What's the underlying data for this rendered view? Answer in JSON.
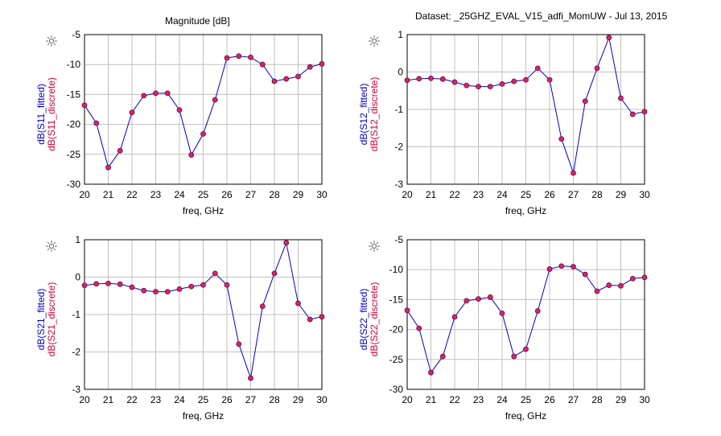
{
  "header": {
    "title": "Magnitude [dB]",
    "dataset": "Dataset: _25GHZ_EVAL_V15_adfi_MomUW - Jul 13, 2015"
  },
  "colors": {
    "fitted": "#0000cc",
    "discrete": "#cc0033",
    "marker_fill": "#e0206a",
    "grid": "#c0c0c0"
  },
  "icons": {
    "plot_marker": "sun-icon"
  },
  "chart_data": [
    {
      "type": "line",
      "id": "s11",
      "ylabel_fitted": "dB(S11_fitted)",
      "ylabel_discrete": "dB(S11_discrete)",
      "xlabel": "freq, GHz",
      "xlim": [
        20,
        30
      ],
      "ylim": [
        -30,
        -5
      ],
      "xticks": [
        20,
        21,
        22,
        23,
        24,
        25,
        26,
        27,
        28,
        29,
        30
      ],
      "yticks": [
        -30,
        -25,
        -20,
        -15,
        -10,
        -5
      ],
      "grid": true,
      "x": [
        20,
        20.5,
        21,
        21.5,
        22,
        22.5,
        23,
        23.5,
        24,
        24.5,
        25,
        25.5,
        26,
        26.5,
        27,
        27.5,
        28,
        28.5,
        29,
        29.5,
        30
      ],
      "series": [
        {
          "name": "dB(S11_fitted)",
          "values": [
            -16.8,
            -19.8,
            -27.2,
            -24.4,
            -18.0,
            -15.2,
            -14.8,
            -14.8,
            -17.6,
            -25.1,
            -21.6,
            -15.9,
            -8.9,
            -8.6,
            -8.8,
            -10.0,
            -12.8,
            -12.4,
            -12.0,
            -10.4,
            -9.9
          ]
        },
        {
          "name": "dB(S11_discrete)",
          "values": [
            -16.8,
            -19.8,
            -27.2,
            -24.4,
            -18.0,
            -15.2,
            -14.8,
            -14.8,
            -17.6,
            -25.1,
            -21.6,
            -15.9,
            -8.9,
            -8.6,
            -8.8,
            -10.0,
            -12.8,
            -12.4,
            -12.0,
            -10.4,
            -9.9
          ]
        }
      ]
    },
    {
      "type": "line",
      "id": "s12",
      "ylabel_fitted": "dB(S12_fitted)",
      "ylabel_discrete": "dB(S12_discrete)",
      "xlabel": "freq, GHz",
      "xlim": [
        20,
        30
      ],
      "ylim": [
        -3,
        1
      ],
      "xticks": [
        20,
        21,
        22,
        23,
        24,
        25,
        26,
        27,
        28,
        29,
        30
      ],
      "yticks": [
        -3,
        -2,
        -1,
        0,
        1
      ],
      "grid": true,
      "x": [
        20,
        20.5,
        21,
        21.5,
        22,
        22.5,
        23,
        23.5,
        24,
        24.5,
        25,
        25.5,
        26,
        26.5,
        27,
        27.5,
        28,
        28.5,
        29,
        29.5,
        30
      ],
      "series": [
        {
          "name": "dB(S12_fitted)",
          "values": [
            -0.22,
            -0.18,
            -0.17,
            -0.19,
            -0.27,
            -0.36,
            -0.39,
            -0.39,
            -0.32,
            -0.25,
            -0.21,
            0.1,
            -0.21,
            -1.79,
            -2.7,
            -0.78,
            0.1,
            0.92,
            -0.7,
            -1.13,
            -1.06
          ]
        },
        {
          "name": "dB(S12_discrete)",
          "values": [
            -0.22,
            -0.18,
            -0.17,
            -0.19,
            -0.27,
            -0.36,
            -0.39,
            -0.39,
            -0.32,
            -0.25,
            -0.21,
            0.1,
            -0.21,
            -1.79,
            -2.7,
            -0.78,
            0.1,
            0.92,
            -0.7,
            -1.13,
            -1.06
          ]
        }
      ]
    },
    {
      "type": "line",
      "id": "s21",
      "ylabel_fitted": "dB(S21_fitted)",
      "ylabel_discrete": "dB(S21_discrete)",
      "xlabel": "freq, GHz",
      "xlim": [
        20,
        30
      ],
      "ylim": [
        -3,
        1
      ],
      "xticks": [
        20,
        21,
        22,
        23,
        24,
        25,
        26,
        27,
        28,
        29,
        30
      ],
      "yticks": [
        -3,
        -2,
        -1,
        0,
        1
      ],
      "grid": true,
      "x": [
        20,
        20.5,
        21,
        21.5,
        22,
        22.5,
        23,
        23.5,
        24,
        24.5,
        25,
        25.5,
        26,
        26.5,
        27,
        27.5,
        28,
        28.5,
        29,
        29.5,
        30
      ],
      "series": [
        {
          "name": "dB(S21_fitted)",
          "values": [
            -0.22,
            -0.18,
            -0.17,
            -0.19,
            -0.27,
            -0.36,
            -0.39,
            -0.39,
            -0.32,
            -0.25,
            -0.21,
            0.1,
            -0.21,
            -1.79,
            -2.7,
            -0.78,
            0.1,
            0.92,
            -0.7,
            -1.13,
            -1.06
          ]
        },
        {
          "name": "dB(S21_discrete)",
          "values": [
            -0.22,
            -0.18,
            -0.17,
            -0.19,
            -0.27,
            -0.36,
            -0.39,
            -0.39,
            -0.32,
            -0.25,
            -0.21,
            0.1,
            -0.21,
            -1.79,
            -2.7,
            -0.78,
            0.1,
            0.92,
            -0.7,
            -1.13,
            -1.06
          ]
        }
      ]
    },
    {
      "type": "line",
      "id": "s22",
      "ylabel_fitted": "dB(S22_fitted)",
      "ylabel_discrete": "dB(S22_discrete)",
      "xlabel": "freq, GHz",
      "xlim": [
        20,
        30
      ],
      "ylim": [
        -30,
        -5
      ],
      "xticks": [
        20,
        21,
        22,
        23,
        24,
        25,
        26,
        27,
        28,
        29,
        30
      ],
      "yticks": [
        -30,
        -25,
        -20,
        -15,
        -10,
        -5
      ],
      "grid": true,
      "x": [
        20,
        20.5,
        21,
        21.5,
        22,
        22.5,
        23,
        23.5,
        24,
        24.5,
        25,
        25.5,
        26,
        26.5,
        27,
        27.5,
        28,
        28.5,
        29,
        29.5,
        30
      ],
      "series": [
        {
          "name": "dB(S22_fitted)",
          "values": [
            -16.8,
            -19.8,
            -27.2,
            -24.5,
            -17.9,
            -15.2,
            -14.9,
            -14.6,
            -17.3,
            -24.5,
            -23.3,
            -16.9,
            -9.9,
            -9.4,
            -9.5,
            -10.8,
            -13.6,
            -12.6,
            -12.7,
            -11.5,
            -11.3
          ]
        },
        {
          "name": "dB(S22_discrete)",
          "values": [
            -16.8,
            -19.8,
            -27.2,
            -24.5,
            -17.9,
            -15.2,
            -14.9,
            -14.6,
            -17.3,
            -24.5,
            -23.3,
            -16.9,
            -9.9,
            -9.4,
            -9.5,
            -10.8,
            -13.6,
            -12.6,
            -12.7,
            -11.5,
            -11.3
          ]
        }
      ]
    }
  ]
}
